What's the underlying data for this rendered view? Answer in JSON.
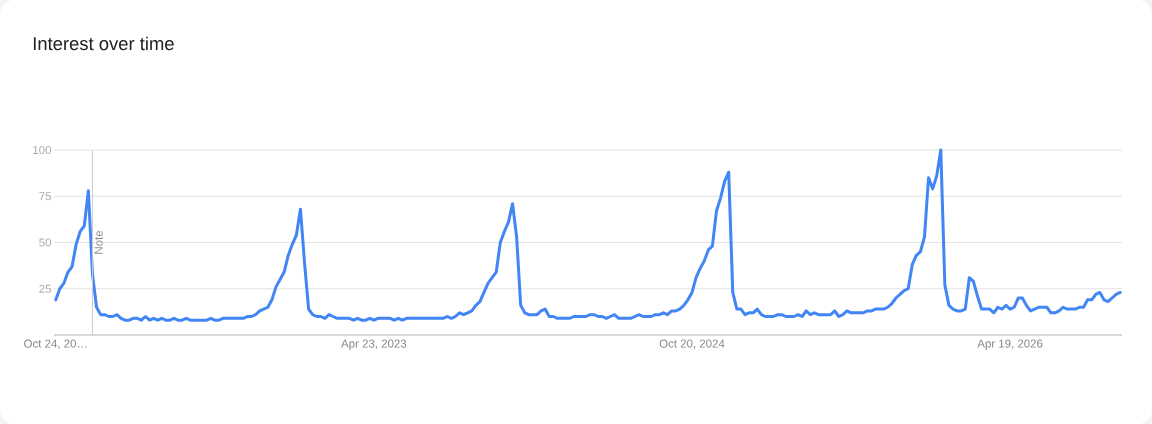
{
  "chart_data": {
    "type": "line",
    "title": "Interest over time",
    "x": [
      "2021-10-24",
      "2021-10-31",
      "2021-11-07",
      "2021-11-14",
      "2021-11-21",
      "2021-11-28",
      "2021-12-05",
      "2021-12-12",
      "2021-12-19",
      "2021-12-26",
      "2022-01-02",
      "2022-01-09",
      "2022-01-16",
      "2022-01-23",
      "2022-01-30",
      "2022-02-06",
      "2022-02-13",
      "2022-02-20",
      "2022-02-27",
      "2022-03-06",
      "2022-03-13",
      "2022-03-20",
      "2022-03-27",
      "2022-04-03",
      "2022-04-10",
      "2022-04-17",
      "2022-04-24",
      "2022-05-01",
      "2022-05-08",
      "2022-05-15",
      "2022-05-22",
      "2022-05-29",
      "2022-06-05",
      "2022-06-12",
      "2022-07-10",
      "2022-07-17",
      "2022-07-24",
      "2022-07-31",
      "2022-08-07",
      "2022-09-11",
      "2022-09-18",
      "2022-09-25",
      "2022-10-02",
      "2022-10-09",
      "2022-10-16",
      "2022-10-23",
      "2022-10-30",
      "2022-11-06",
      "2022-11-13",
      "2022-11-20",
      "2022-11-27",
      "2022-12-04",
      "2022-12-11",
      "2022-12-18",
      "2022-12-25",
      "2023-01-01",
      "2023-01-08",
      "2023-01-15",
      "2023-01-22",
      "2023-01-29",
      "2023-02-05",
      "2023-02-12",
      "2023-02-19",
      "2023-03-12",
      "2023-03-19",
      "2023-03-26",
      "2023-04-02",
      "2023-04-09",
      "2023-04-16",
      "2023-04-23",
      "2023-04-30",
      "2023-05-21",
      "2023-05-28",
      "2023-06-04",
      "2023-06-11",
      "2023-06-18",
      "2023-08-20",
      "2023-08-27",
      "2023-09-03",
      "2023-09-10",
      "2023-09-17",
      "2023-09-24",
      "2023-10-01",
      "2023-10-08",
      "2023-10-15",
      "2023-10-22",
      "2023-10-29",
      "2023-11-05",
      "2023-11-12",
      "2023-11-19",
      "2023-11-26",
      "2023-12-03",
      "2023-12-10",
      "2023-12-17",
      "2023-12-24",
      "2023-12-31",
      "2024-01-07",
      "2024-01-14",
      "2024-01-28",
      "2024-02-04",
      "2024-02-11",
      "2024-02-18",
      "2024-02-25",
      "2024-03-03",
      "2024-03-24",
      "2024-03-31",
      "2024-04-21",
      "2024-04-28",
      "2024-05-05",
      "2024-05-12",
      "2024-05-19",
      "2024-05-26",
      "2024-06-02",
      "2024-06-09",
      "2024-06-16",
      "2024-07-07",
      "2024-07-14",
      "2024-07-21",
      "2024-07-28",
      "2024-08-11",
      "2024-08-18",
      "2024-08-25",
      "2024-09-01",
      "2024-09-08",
      "2024-09-15",
      "2024-09-22",
      "2024-09-29",
      "2024-10-06",
      "2024-10-13",
      "2024-10-20",
      "2024-10-27",
      "2024-11-03",
      "2024-11-10",
      "2024-11-17",
      "2024-11-24",
      "2024-12-01",
      "2024-12-08",
      "2024-12-15",
      "2024-12-22",
      "2024-12-29",
      "2025-01-05",
      "2025-01-12",
      "2025-01-19",
      "2025-01-26",
      "2025-02-02",
      "2025-02-09",
      "2025-02-16",
      "2025-02-23",
      "2025-03-09",
      "2025-03-16",
      "2025-03-23",
      "2025-03-30",
      "2025-04-13",
      "2025-04-20",
      "2025-04-27",
      "2025-05-04",
      "2025-05-11",
      "2025-05-18",
      "2025-05-25",
      "2025-06-15",
      "2025-06-22",
      "2025-06-29",
      "2025-07-06",
      "2025-07-13",
      "2025-07-20",
      "2025-08-10",
      "2025-08-17",
      "2025-08-24",
      "2025-08-31",
      "2025-09-14",
      "2025-09-21",
      "2025-09-28",
      "2025-10-05",
      "2025-10-12",
      "2025-10-19",
      "2025-10-26",
      "2025-11-02",
      "2025-11-09",
      "2025-11-16",
      "2025-11-23",
      "2025-11-30",
      "2025-12-07",
      "2025-12-14",
      "2025-12-21",
      "2025-12-28",
      "2026-01-04",
      "2026-01-11",
      "2026-01-18",
      "2026-01-25",
      "2026-02-01",
      "2026-02-08",
      "2026-02-15",
      "2026-02-22",
      "2026-03-01",
      "2026-03-15",
      "2026-03-22",
      "2026-03-29",
      "2026-04-05",
      "2026-04-12",
      "2026-04-19",
      "2026-04-26",
      "2026-05-03",
      "2026-05-10",
      "2026-05-17",
      "2026-05-24",
      "2026-05-31",
      "2026-06-07",
      "2026-06-21",
      "2026-06-28",
      "2026-07-05",
      "2026-07-12",
      "2026-07-19",
      "2026-07-26",
      "2026-08-09",
      "2026-08-16",
      "2026-08-23",
      "2026-08-30",
      "2026-09-06",
      "2026-09-13",
      "2026-09-20",
      "2026-09-27",
      "2026-10-04",
      "2026-10-11",
      "2026-10-18",
      "2026-10-25"
    ],
    "series": [
      {
        "color": "#4285f4",
        "values": [
          19,
          25,
          28,
          34,
          37,
          49,
          56,
          59,
          78,
          33,
          15,
          11,
          11,
          10,
          10,
          11,
          9,
          8,
          8,
          9,
          9,
          8,
          10,
          8,
          9,
          8,
          9,
          8,
          8,
          9,
          8,
          8,
          9,
          8,
          8,
          9,
          8,
          8,
          9,
          9,
          10,
          10,
          11,
          13,
          14,
          15,
          19,
          26,
          30,
          34,
          43,
          49,
          54,
          68,
          39,
          14,
          11,
          10,
          10,
          9,
          11,
          10,
          9,
          9,
          8,
          9,
          8,
          8,
          9,
          8,
          9,
          9,
          8,
          9,
          8,
          9,
          9,
          10,
          9,
          10,
          12,
          11,
          12,
          13,
          16,
          18,
          23,
          28,
          31,
          34,
          50,
          56,
          61,
          71,
          53,
          16,
          12,
          11,
          11,
          13,
          14,
          10,
          10,
          9,
          9,
          10,
          10,
          11,
          11,
          10,
          10,
          9,
          10,
          11,
          9,
          9,
          10,
          11,
          10,
          10,
          11,
          11,
          12,
          11,
          13,
          13,
          14,
          16,
          19,
          23,
          31,
          36,
          40,
          46,
          48,
          67,
          74,
          83,
          88,
          23,
          14,
          14,
          11,
          12,
          12,
          14,
          11,
          10,
          10,
          11,
          11,
          10,
          10,
          11,
          10,
          13,
          11,
          12,
          11,
          11,
          13,
          10,
          11,
          13,
          12,
          12,
          13,
          13,
          14,
          14,
          15,
          17,
          20,
          22,
          24,
          25,
          38,
          43,
          45,
          53,
          85,
          79,
          86,
          100,
          27,
          16,
          14,
          13,
          13,
          14,
          31,
          29,
          21,
          14,
          14,
          12,
          15,
          14,
          16,
          14,
          15,
          20,
          20,
          16,
          13,
          14,
          15,
          15,
          12,
          12,
          13,
          15,
          14,
          14,
          15,
          15,
          19,
          19,
          22,
          23,
          19,
          18,
          20,
          22,
          23
        ]
      }
    ],
    "xlim": [
      "2021-10-21",
      "2026-10-28"
    ],
    "ylim": [
      0,
      100
    ],
    "xticks": [
      {
        "value": "2021-10-24",
        "label": "Oct 24, 20…"
      },
      {
        "value": "2023-04-23",
        "label": "Apr 23, 2023"
      },
      {
        "value": "2024-10-20",
        "label": "Oct 20, 2024"
      },
      {
        "value": "2026-04-19",
        "label": "Apr 19, 2026"
      }
    ],
    "yticks": [
      25,
      50,
      75,
      100
    ],
    "grid": "y",
    "ref_lines": [
      {
        "axis": "x",
        "value": "2021-12-26",
        "label": "Note",
        "color": "#cccccc"
      }
    ]
  }
}
